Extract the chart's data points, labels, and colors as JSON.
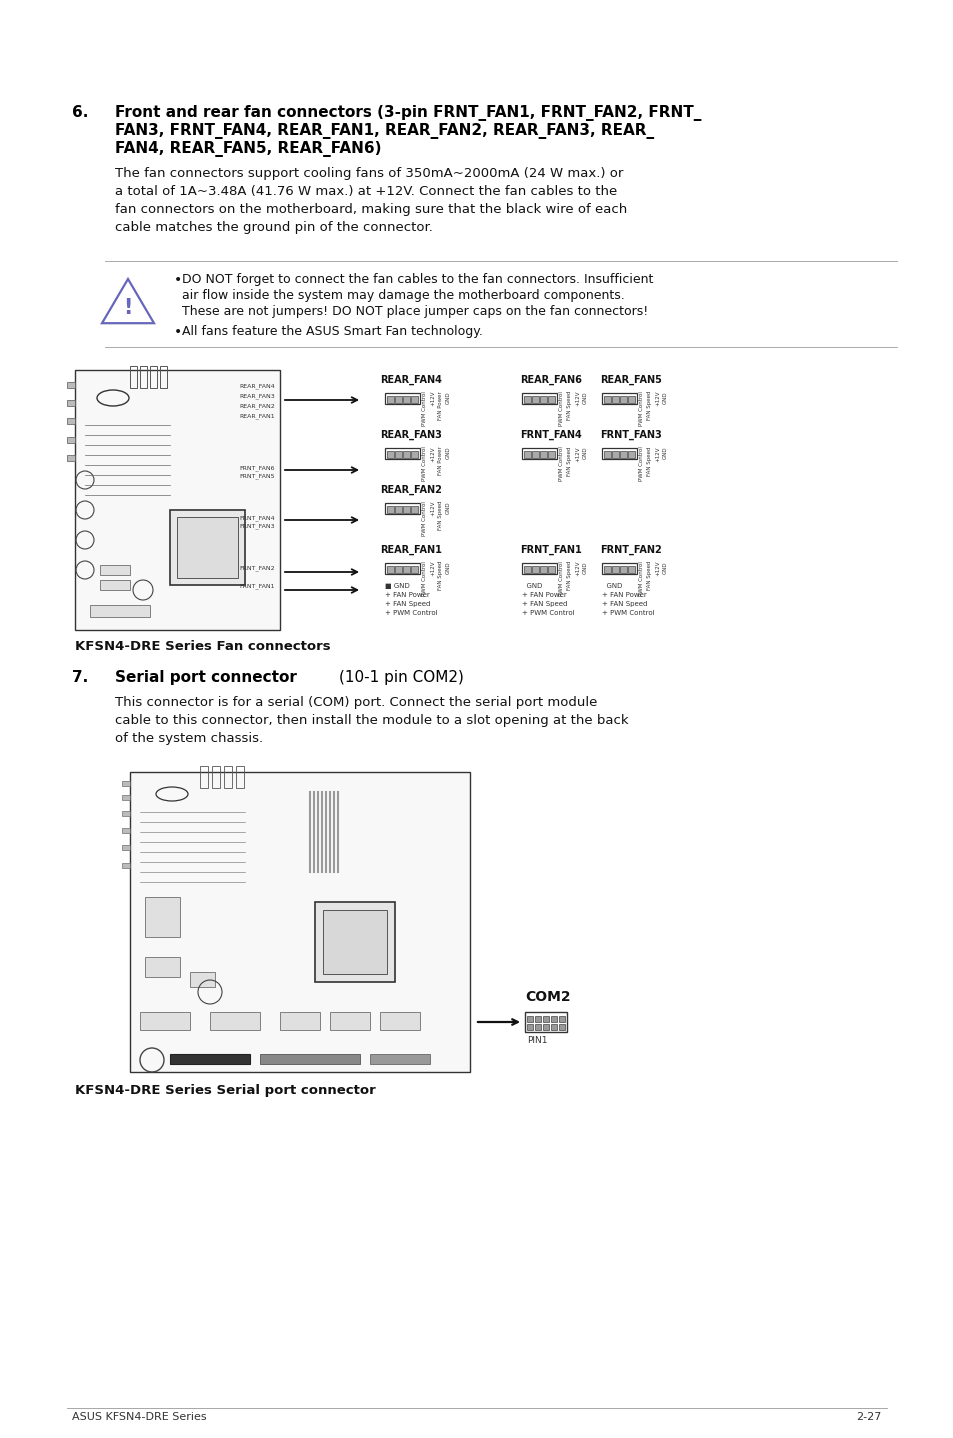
{
  "page_bg": "#ffffff",
  "footer_text_left": "ASUS KFSN4-DRE Series",
  "footer_text_right": "2-27",
  "section6_number": "6.",
  "section6_title_line1": "Front and rear fan connectors (3-pin FRNT_FAN1, FRNT_FAN2, FRNT_",
  "section6_title_line2": "FAN3, FRNT_FAN4, REAR_FAN1, REAR_FAN2, REAR_FAN3, REAR_",
  "section6_title_line3": "FAN4, REAR_FAN5, REAR_FAN6)",
  "body6_lines": [
    "The fan connectors support cooling fans of 350mA~2000mA (24 W max.) or",
    "a total of 1A~3.48A (41.76 W max.) at +12V. Connect the fan cables to the",
    "fan connectors on the motherboard, making sure that the black wire of each",
    "cable matches the ground pin of the connector."
  ],
  "warn1": "DO NOT forget to connect the fan cables to the fan connectors. Insufficient",
  "warn2": "air flow inside the system may damage the motherboard components.",
  "warn3": "These are not jumpers! DO NOT place jumper caps on the fan connectors!",
  "warn4": "All fans feature the ASUS Smart Fan technology.",
  "fan_caption": "KFSN4-DRE Series Fan connectors",
  "section7_number": "7.",
  "section7_title_bold": "Serial port connector ",
  "section7_title_normal": "(10-1 pin COM2)",
  "body7_lines": [
    "This connector is for a serial (COM) port. Connect the serial port module",
    "cable to this connector, then install the module to a slot opening at the back",
    "of the system chassis."
  ],
  "serial_caption": "KFSN4-DRE Series Serial port connector",
  "com2_label": "COM2",
  "pin1_label": "PIN1"
}
